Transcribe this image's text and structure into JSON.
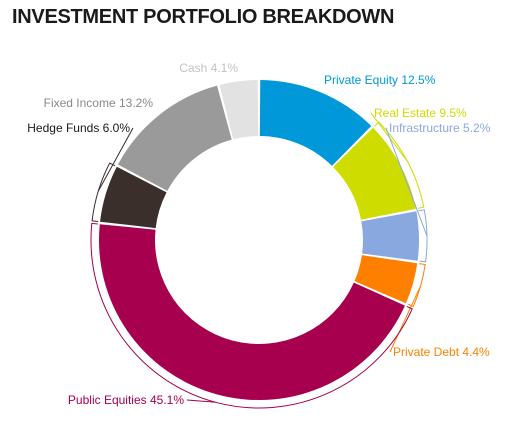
{
  "chart_data": {
    "type": "pie",
    "style": "donut",
    "title": "INVESTMENT PORTFOLIO BREAKDOWN",
    "slices": [
      {
        "name": "Private Equity",
        "value": 12.5,
        "label": "Private Equity 12.5%",
        "color": "#0098d9"
      },
      {
        "name": "Real Estate",
        "value": 9.5,
        "label": "Real Estate 9.5%",
        "color": "#cfdc00"
      },
      {
        "name": "Infrastructure",
        "value": 5.2,
        "label": "Infrastructure 5.2%",
        "color": "#8aa8e0"
      },
      {
        "name": "Private Debt",
        "value": 4.4,
        "label": "Private Debt 4.4%",
        "color": "#ff8000"
      },
      {
        "name": "Public Equities",
        "value": 45.1,
        "label": "Public Equities 45.1%",
        "color": "#a6004e"
      },
      {
        "name": "Hedge Funds",
        "value": 6.0,
        "label": "Hedge Funds 6.0%",
        "color": "#3b2f2b"
      },
      {
        "name": "Fixed Income",
        "value": 13.2,
        "label": "Fixed Income 13.2%",
        "color": "#9a9a9a"
      },
      {
        "name": "Cash",
        "value": 4.1,
        "label": "Cash 4.1%",
        "color": "#e2e2e2"
      }
    ]
  }
}
